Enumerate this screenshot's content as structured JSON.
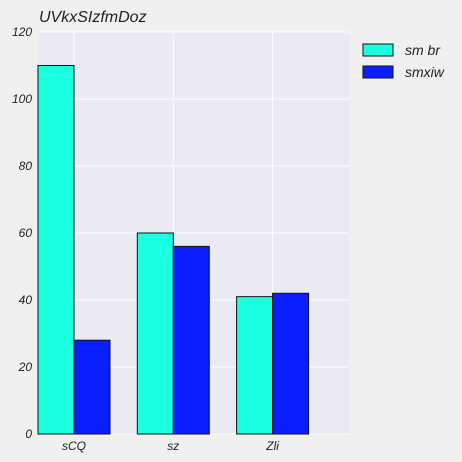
{
  "chart_data": {
    "type": "bar",
    "title": "UVkxSIzfmDoz",
    "xlabel": "",
    "ylabel": "",
    "categories": [
      "sCQ",
      "sz",
      "Zli"
    ],
    "series": [
      {
        "name": "sm br",
        "color": "#1affe0",
        "values": [
          110,
          60,
          41
        ]
      },
      {
        "name": "smxiw",
        "color": "#0a1eff",
        "values": [
          28,
          56,
          42
        ]
      }
    ],
    "ylim": [
      0,
      120
    ],
    "yticks": [
      0,
      20,
      40,
      60,
      80,
      100,
      120
    ],
    "grid": true,
    "legend_position": "top-right",
    "plot_background": "#eaeaf2"
  }
}
